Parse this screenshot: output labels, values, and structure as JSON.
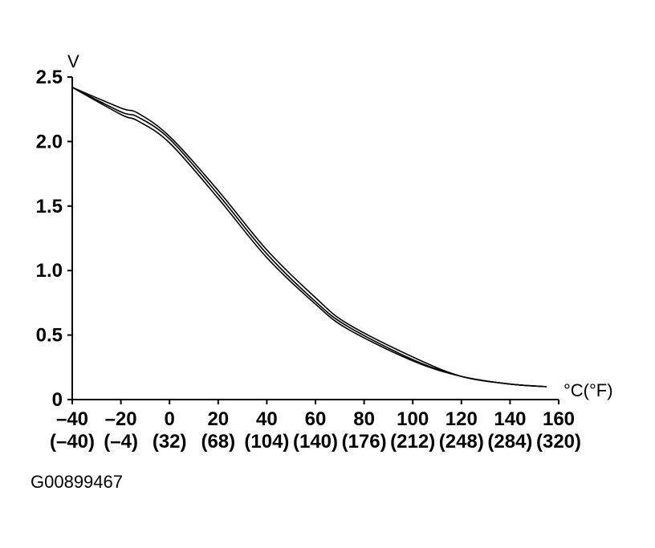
{
  "figure_id": "G00899467",
  "chart_data": {
    "type": "line",
    "title": "",
    "xlabel": "°C(°F)",
    "ylabel": "V",
    "xlim": [
      -40,
      160
    ],
    "ylim": [
      0,
      2.5
    ],
    "y_ticks": [
      "0",
      "0.5",
      "1.0",
      "1.5",
      "2.0",
      "2.5"
    ],
    "x_ticks_c": [
      "–40",
      "–20",
      "0",
      "20",
      "40",
      "60",
      "80",
      "100",
      "120",
      "140",
      "160"
    ],
    "x_ticks_f": [
      "(–40)",
      "(–4)",
      "(32)",
      "(68)",
      "(104)",
      "(140)",
      "(176)",
      "(212)",
      "(248)",
      "(284)",
      "(320)"
    ],
    "grid": false,
    "legend": "none",
    "x": [
      -40,
      -20,
      -13,
      0,
      20,
      40,
      60,
      73,
      100,
      120,
      140,
      155
    ],
    "series": [
      {
        "values": [
          2.42,
          2.26,
          2.22,
          2.04,
          1.62,
          1.16,
          0.79,
          0.59,
          0.33,
          0.18,
          0.12,
          0.1
        ]
      },
      {
        "values": [
          2.42,
          2.23,
          2.19,
          2.02,
          1.59,
          1.13,
          0.76,
          0.57,
          0.31,
          0.18,
          0.12,
          0.1
        ]
      },
      {
        "values": [
          2.42,
          2.21,
          2.16,
          1.99,
          1.56,
          1.1,
          0.74,
          0.55,
          0.3,
          0.18,
          0.12,
          0.1
        ]
      }
    ]
  }
}
